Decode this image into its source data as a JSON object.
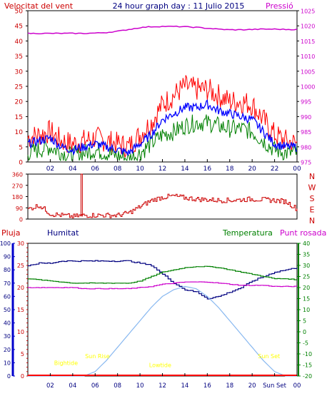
{
  "header": {
    "left_label": "Velocitat del vent",
    "title": "24 hour graph day : 11 Julio 2015",
    "right_label": "Pressió"
  },
  "colors": {
    "wind_gust": "#ff0000",
    "wind_avg": "#0000ff",
    "wind_min": "#008000",
    "pressure": "#cc00cc",
    "direction": "#cc0000",
    "humidity": "#000080",
    "temperature": "#008000",
    "dewpoint": "#cc00cc",
    "solar": "#88b8f0",
    "rain": "#ff0000",
    "event_label": "#ffff00"
  },
  "x_ticks": [
    "02",
    "04",
    "06",
    "08",
    "10",
    "12",
    "14",
    "16",
    "18",
    "20",
    "22",
    "00"
  ],
  "bottom_x_ticks": [
    "02",
    "04",
    "06",
    "08",
    "10",
    "12",
    "14",
    "16",
    "18",
    "20",
    "Sun Set",
    "00"
  ],
  "chart_data": [
    {
      "type": "line",
      "name": "wind-pressure",
      "ylabel_left": "Velocitat del vent",
      "ylabel_right": "Pressió",
      "ylim_left": [
        0,
        50
      ],
      "ylim_right": [
        975,
        1025
      ],
      "left_ticks": [
        0,
        5,
        10,
        15,
        20,
        25,
        30,
        35,
        40,
        45,
        50
      ],
      "right_ticks": [
        975,
        980,
        985,
        990,
        995,
        1000,
        1005,
        1010,
        1015,
        1020,
        1025
      ],
      "x_hours": [
        0,
        1,
        2,
        3,
        4,
        5,
        6,
        7,
        8,
        9,
        10,
        11,
        12,
        13,
        14,
        15,
        16,
        17,
        18,
        19,
        20,
        21,
        22,
        23,
        24
      ],
      "series": [
        {
          "name": "gust",
          "axis": "left",
          "values": [
            8,
            9,
            10,
            7,
            6,
            7,
            8,
            7,
            6,
            5,
            9,
            13,
            19,
            22,
            25,
            24,
            24,
            22,
            20,
            20,
            19,
            14,
            9,
            7,
            6
          ]
        },
        {
          "name": "avg",
          "axis": "left",
          "values": [
            6,
            7,
            8,
            5,
            4,
            5,
            6,
            5,
            4,
            3,
            6,
            9,
            14,
            16,
            18,
            18,
            19,
            17,
            16,
            15,
            14,
            10,
            6,
            5,
            5
          ]
        },
        {
          "name": "min",
          "axis": "left",
          "values": [
            3,
            4,
            5,
            3,
            2,
            3,
            4,
            3,
            2,
            1,
            3,
            6,
            9,
            10,
            12,
            13,
            13,
            12,
            11,
            11,
            10,
            7,
            4,
            3,
            3
          ]
        },
        {
          "name": "pressure",
          "axis": "right",
          "values": [
            1017.5,
            1017.5,
            1017.5,
            1017.5,
            1017.5,
            1017.5,
            1017.6,
            1017.8,
            1018.2,
            1018.8,
            1019.4,
            1019.7,
            1019.8,
            1019.8,
            1019.7,
            1019.5,
            1019.2,
            1018.9,
            1018.7,
            1018.7,
            1018.8,
            1018.9,
            1018.9,
            1018.8,
            1018.8
          ]
        }
      ]
    },
    {
      "type": "line",
      "name": "wind-direction",
      "ylim": [
        0,
        360
      ],
      "y_ticks": [
        0,
        90,
        180,
        270,
        360
      ],
      "direction_letters": [
        "N",
        "W",
        "S",
        "E",
        "N"
      ],
      "x_hours": [
        0,
        1,
        2,
        3,
        4,
        5,
        6,
        7,
        8,
        9,
        10,
        11,
        12,
        13,
        14,
        15,
        16,
        17,
        18,
        19,
        20,
        21,
        22,
        23,
        24
      ],
      "values": [
        80,
        110,
        40,
        30,
        20,
        30,
        30,
        30,
        30,
        50,
        100,
        150,
        175,
        185,
        170,
        160,
        155,
        150,
        150,
        155,
        160,
        155,
        150,
        140,
        80
      ],
      "spike": {
        "hour": 4.8,
        "value": 360
      }
    },
    {
      "type": "line",
      "name": "humidity-temperature",
      "legend": [
        "Pluja",
        "Humitat",
        "Temperatura",
        "Punt rosada"
      ],
      "rain_ticks": [
        0,
        10,
        20,
        30,
        40,
        50,
        60,
        70,
        80,
        90,
        100
      ],
      "humidity_ticks": [
        0,
        5,
        10,
        15,
        20,
        25,
        30
      ],
      "temperature_ticks": [
        -20,
        -15,
        -10,
        -5,
        0,
        5,
        10,
        15,
        20,
        25,
        30,
        35,
        40
      ],
      "ylim_humidity": [
        0,
        30
      ],
      "ylim_temperature": [
        -20,
        40
      ],
      "x_hours": [
        0,
        1,
        2,
        3,
        4,
        5,
        6,
        7,
        8,
        9,
        10,
        11,
        12,
        13,
        14,
        15,
        16,
        17,
        18,
        19,
        20,
        21,
        22,
        23,
        24
      ],
      "series": [
        {
          "name": "Humitat",
          "axis": "humidity",
          "values": [
            25,
            25.5,
            25.5,
            26,
            26,
            26,
            26,
            26,
            26,
            26,
            25.5,
            25,
            23,
            21,
            19.5,
            19,
            17.5,
            18,
            19,
            20,
            21.5,
            22.5,
            23.5,
            24,
            24.5
          ]
        },
        {
          "name": "Temperatura",
          "axis": "temperature",
          "values": [
            24,
            23.5,
            23,
            22.5,
            22,
            22,
            22,
            22,
            22,
            22,
            23,
            25,
            27,
            28,
            29,
            29.5,
            29.5,
            29,
            28,
            27,
            26,
            25,
            24,
            24,
            23.5
          ]
        },
        {
          "name": "Punt rosada",
          "axis": "temperature",
          "values": [
            20,
            20,
            20,
            20,
            20,
            19.5,
            19.5,
            19.5,
            19.5,
            19.5,
            20,
            20.5,
            21.5,
            22,
            22.5,
            22.5,
            22.5,
            22,
            21.5,
            21,
            21,
            21,
            20.5,
            20.5,
            20.5
          ]
        },
        {
          "name": "solar",
          "axis": "temperature",
          "values": [
            -20,
            -20,
            -20,
            -20,
            -20,
            -20,
            -18,
            -13,
            -7,
            -1,
            5,
            11,
            16,
            19,
            20.5,
            19.5,
            16,
            11,
            5,
            -1,
            -7,
            -13,
            -18,
            -20,
            -20
          ]
        },
        {
          "name": "Pluja",
          "axis": "rain",
          "values": [
            0,
            0,
            0,
            0,
            0,
            0,
            0,
            0,
            0,
            0,
            0,
            0,
            0,
            0,
            0,
            0,
            0,
            0,
            0,
            0,
            0,
            0,
            0,
            0,
            0
          ]
        }
      ],
      "events": [
        {
          "label": "Sun Rise",
          "hour": 6.2,
          "temp": -12
        },
        {
          "label": "Sun Set",
          "hour": 21.5,
          "temp": -12
        },
        {
          "label": "Bightide",
          "hour": 3.4,
          "temp": -15
        },
        {
          "label": "Lowtide",
          "hour": 11.8,
          "temp": -16
        }
      ]
    }
  ]
}
